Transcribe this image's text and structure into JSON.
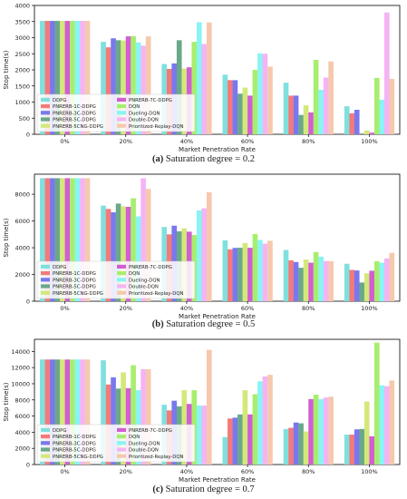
{
  "chart_data": [
    {
      "type": "bar",
      "caption_letter": "(a)",
      "caption_text": "Saturation degree = 0.2",
      "xlabel": "Market Penetration Rate",
      "ylabel": "Stop time(s)",
      "categories": [
        "0%",
        "20%",
        "40%",
        "60%",
        "80%",
        "100%"
      ],
      "ylim": [
        0,
        4000
      ],
      "yticks": [
        0,
        500,
        1000,
        1500,
        2000,
        2500,
        3000,
        3500,
        4000
      ],
      "legend_position": "bottom-left",
      "series": [
        {
          "name": "DDPG",
          "color": "#7fe0de",
          "values": [
            3520,
            2870,
            2180,
            1850,
            1600,
            870
          ]
        },
        {
          "name": "PNRERB-1C-DDPG",
          "color": "#f47a7a",
          "values": [
            3520,
            2700,
            2030,
            1680,
            1200,
            650
          ]
        },
        {
          "name": "PNRERB-3C-DDPG",
          "color": "#7a78ee",
          "values": [
            3520,
            2980,
            2200,
            1680,
            1200,
            760
          ]
        },
        {
          "name": "PNRERB-5C-DDPG",
          "color": "#6aa88a",
          "values": [
            3520,
            2920,
            2920,
            1260,
            600,
            0
          ]
        },
        {
          "name": "PNRERB-5CNG-DDPG",
          "color": "#d4e87a",
          "values": [
            3520,
            2910,
            2040,
            1450,
            900,
            120
          ]
        },
        {
          "name": "PNRERB-7C-DDPG",
          "color": "#d35dd3",
          "values": [
            3520,
            3040,
            2080,
            1200,
            680,
            50
          ]
        },
        {
          "name": "DQN",
          "color": "#a8ee6e",
          "values": [
            3520,
            3050,
            2870,
            2000,
            2310,
            1750
          ]
        },
        {
          "name": "Dueling-DQN",
          "color": "#88f4f4",
          "values": [
            3520,
            2850,
            3480,
            2510,
            1380,
            1070
          ]
        },
        {
          "name": "Double-DQN",
          "color": "#f4b4f4",
          "values": [
            3520,
            2750,
            2800,
            2500,
            1760,
            3780
          ]
        },
        {
          "name": "Prioritized-Replay-DQN",
          "color": "#f6c8ae",
          "values": [
            3520,
            3040,
            3470,
            2100,
            2260,
            1720
          ]
        }
      ]
    },
    {
      "type": "bar",
      "caption_letter": "(b)",
      "caption_text": "Saturation degree = 0.5",
      "xlabel": "Market Penetration Rate",
      "ylabel": "Stop time(s)",
      "categories": [
        "0%",
        "20%",
        "40%",
        "60%",
        "80%",
        "100%"
      ],
      "ylim": [
        0,
        9500
      ],
      "yticks": [
        0,
        2000,
        4000,
        6000,
        8000
      ],
      "legend_position": "bottom-left",
      "series": [
        {
          "name": "DDPG",
          "color": "#7fe0de",
          "values": [
            9200,
            7150,
            5550,
            4550,
            3830,
            2800
          ]
        },
        {
          "name": "PNRERB-1C-DDPG",
          "color": "#f47a7a",
          "values": [
            9200,
            6900,
            5000,
            3880,
            3050,
            2340
          ]
        },
        {
          "name": "PNRERB-3C-DDPG",
          "color": "#7a78ee",
          "values": [
            9200,
            6650,
            5650,
            3990,
            2930,
            2300
          ]
        },
        {
          "name": "PNRERB-5C-DDPG",
          "color": "#6aa88a",
          "values": [
            9200,
            7300,
            5230,
            4000,
            2500,
            1400
          ]
        },
        {
          "name": "PNRERB-5CNG-DDPG",
          "color": "#d4e87a",
          "values": [
            9200,
            7100,
            5450,
            4350,
            3120,
            2090
          ]
        },
        {
          "name": "PNRERB-7C-DDPG",
          "color": "#d35dd3",
          "values": [
            9200,
            7060,
            5200,
            4000,
            2880,
            2280
          ]
        },
        {
          "name": "DQN",
          "color": "#a8ee6e",
          "values": [
            9200,
            7700,
            4950,
            5030,
            3680,
            3000
          ]
        },
        {
          "name": "Dueling-DQN",
          "color": "#88f4f4",
          "values": [
            9200,
            6340,
            6800,
            4580,
            3330,
            2880
          ]
        },
        {
          "name": "Double-DQN",
          "color": "#f4b4f4",
          "values": [
            9200,
            9200,
            6950,
            4300,
            3000,
            3200
          ]
        },
        {
          "name": "Prioritized-Replay-DQN",
          "color": "#f6c8ae",
          "values": [
            9200,
            8400,
            8150,
            4520,
            3000,
            3620
          ]
        }
      ]
    },
    {
      "type": "bar",
      "caption_letter": "(c)",
      "caption_text": "Saturation degree = 0.7",
      "xlabel": "Market Penetration Rate",
      "ylabel": "Stop time(s)",
      "categories": [
        "0%",
        "20%",
        "40%",
        "60%",
        "80%",
        "100%"
      ],
      "ylim": [
        0,
        15500
      ],
      "yticks": [
        0,
        2000,
        4000,
        6000,
        8000,
        10000,
        12000,
        14000
      ],
      "legend_position": "bottom-left",
      "series": [
        {
          "name": "DDPG",
          "color": "#7fe0de",
          "values": [
            13000,
            12900,
            7400,
            3400,
            4400,
            3700
          ]
        },
        {
          "name": "PNRERB-1C-DDPG",
          "color": "#f47a7a",
          "values": [
            13000,
            9900,
            6700,
            5700,
            4550,
            3700
          ]
        },
        {
          "name": "PNRERB-3C-DDPG",
          "color": "#7a78ee",
          "values": [
            13000,
            10800,
            7900,
            5800,
            5200,
            4350
          ]
        },
        {
          "name": "PNRERB-5C-DDPG",
          "color": "#6aa88a",
          "values": [
            13000,
            9400,
            7200,
            6200,
            5100,
            4400
          ]
        },
        {
          "name": "PNRERB-5CNG-DDPG",
          "color": "#d4e87a",
          "values": [
            13000,
            11400,
            9200,
            9200,
            4100,
            7800
          ]
        },
        {
          "name": "PNRERB-7C-DDPG",
          "color": "#d35dd3",
          "values": [
            13000,
            9450,
            7500,
            6200,
            8100,
            3500
          ]
        },
        {
          "name": "DQN",
          "color": "#a8ee6e",
          "values": [
            13000,
            12300,
            9200,
            8700,
            8650,
            15100
          ]
        },
        {
          "name": "Dueling-DQN",
          "color": "#88f4f4",
          "values": [
            13000,
            9200,
            7300,
            10300,
            8100,
            9800
          ]
        },
        {
          "name": "Double-DQN",
          "color": "#f4b4f4",
          "values": [
            13000,
            11800,
            7300,
            10900,
            8300,
            9700
          ]
        },
        {
          "name": "Prioritized-Replay-DQN",
          "color": "#f6c8ae",
          "values": [
            13000,
            11800,
            14200,
            11100,
            8400,
            10400
          ]
        }
      ]
    }
  ]
}
